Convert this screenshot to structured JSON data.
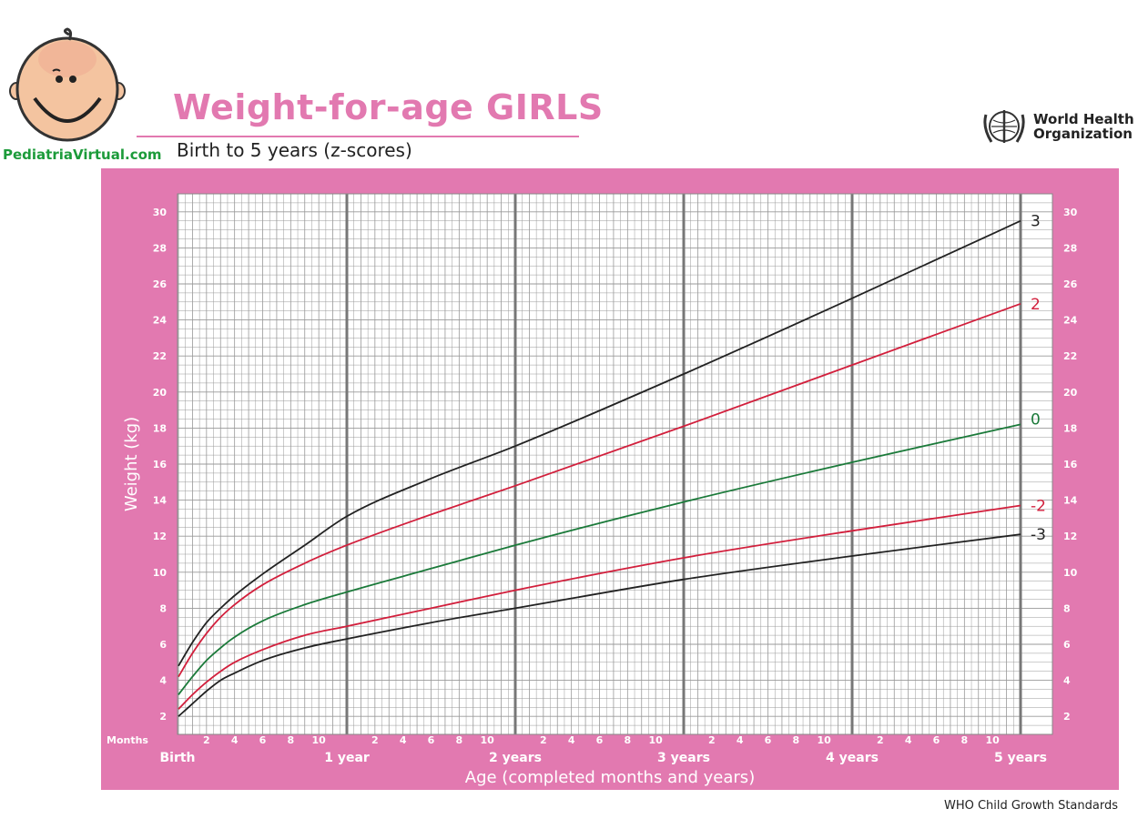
{
  "branding": {
    "site": "PediatriaVirtual.com",
    "org": [
      "World Health",
      "Organization"
    ],
    "footer": "WHO Child Growth Standards"
  },
  "colors": {
    "pink": "#e279b0",
    "grid": "#999999",
    "z3": "#222222",
    "z2": "#d21f3c",
    "z0": "#1b7a3a"
  },
  "chart_data": {
    "type": "line",
    "title": "Weight-for-age GIRLS",
    "subtitle": "Birth to 5 years (z-scores)",
    "xlabel": "Age (completed months and years)",
    "ylabel": "Weight (kg)",
    "xlim": [
      0,
      60
    ],
    "ylim": [
      1,
      31
    ],
    "yticks": [
      2,
      4,
      6,
      8,
      10,
      12,
      14,
      16,
      18,
      20,
      22,
      24,
      26,
      28,
      30
    ],
    "month_label": "Months",
    "month_ticks": [
      "2",
      "4",
      "6",
      "8",
      "10"
    ],
    "year_labels": [
      "Birth",
      "1 year",
      "2 years",
      "3 years",
      "4 years",
      "5 years"
    ],
    "grid": true,
    "x": [
      0,
      1,
      2,
      3,
      4,
      6,
      9,
      12,
      18,
      24,
      36,
      48,
      60
    ],
    "series": [
      {
        "name": "3",
        "color_key": "z3",
        "values": [
          4.8,
          6.1,
          7.2,
          8.0,
          8.7,
          9.9,
          11.5,
          13.1,
          15.2,
          17.0,
          21.0,
          25.2,
          29.5
        ]
      },
      {
        "name": "2",
        "color_key": "z2",
        "values": [
          4.2,
          5.5,
          6.6,
          7.5,
          8.2,
          9.3,
          10.5,
          11.5,
          13.2,
          14.8,
          18.1,
          21.5,
          24.9
        ]
      },
      {
        "name": "0",
        "color_key": "z0",
        "values": [
          3.2,
          4.2,
          5.1,
          5.8,
          6.4,
          7.3,
          8.2,
          8.9,
          10.2,
          11.5,
          13.9,
          16.1,
          18.2
        ]
      },
      {
        "name": "-2",
        "color_key": "z2",
        "values": [
          2.4,
          3.2,
          3.9,
          4.5,
          5.0,
          5.7,
          6.5,
          7.0,
          8.0,
          9.0,
          10.8,
          12.3,
          13.7
        ]
      },
      {
        "name": "-3",
        "color_key": "z3",
        "values": [
          2.0,
          2.7,
          3.4,
          4.0,
          4.4,
          5.1,
          5.8,
          6.3,
          7.2,
          8.0,
          9.6,
          10.9,
          12.1
        ]
      }
    ]
  }
}
